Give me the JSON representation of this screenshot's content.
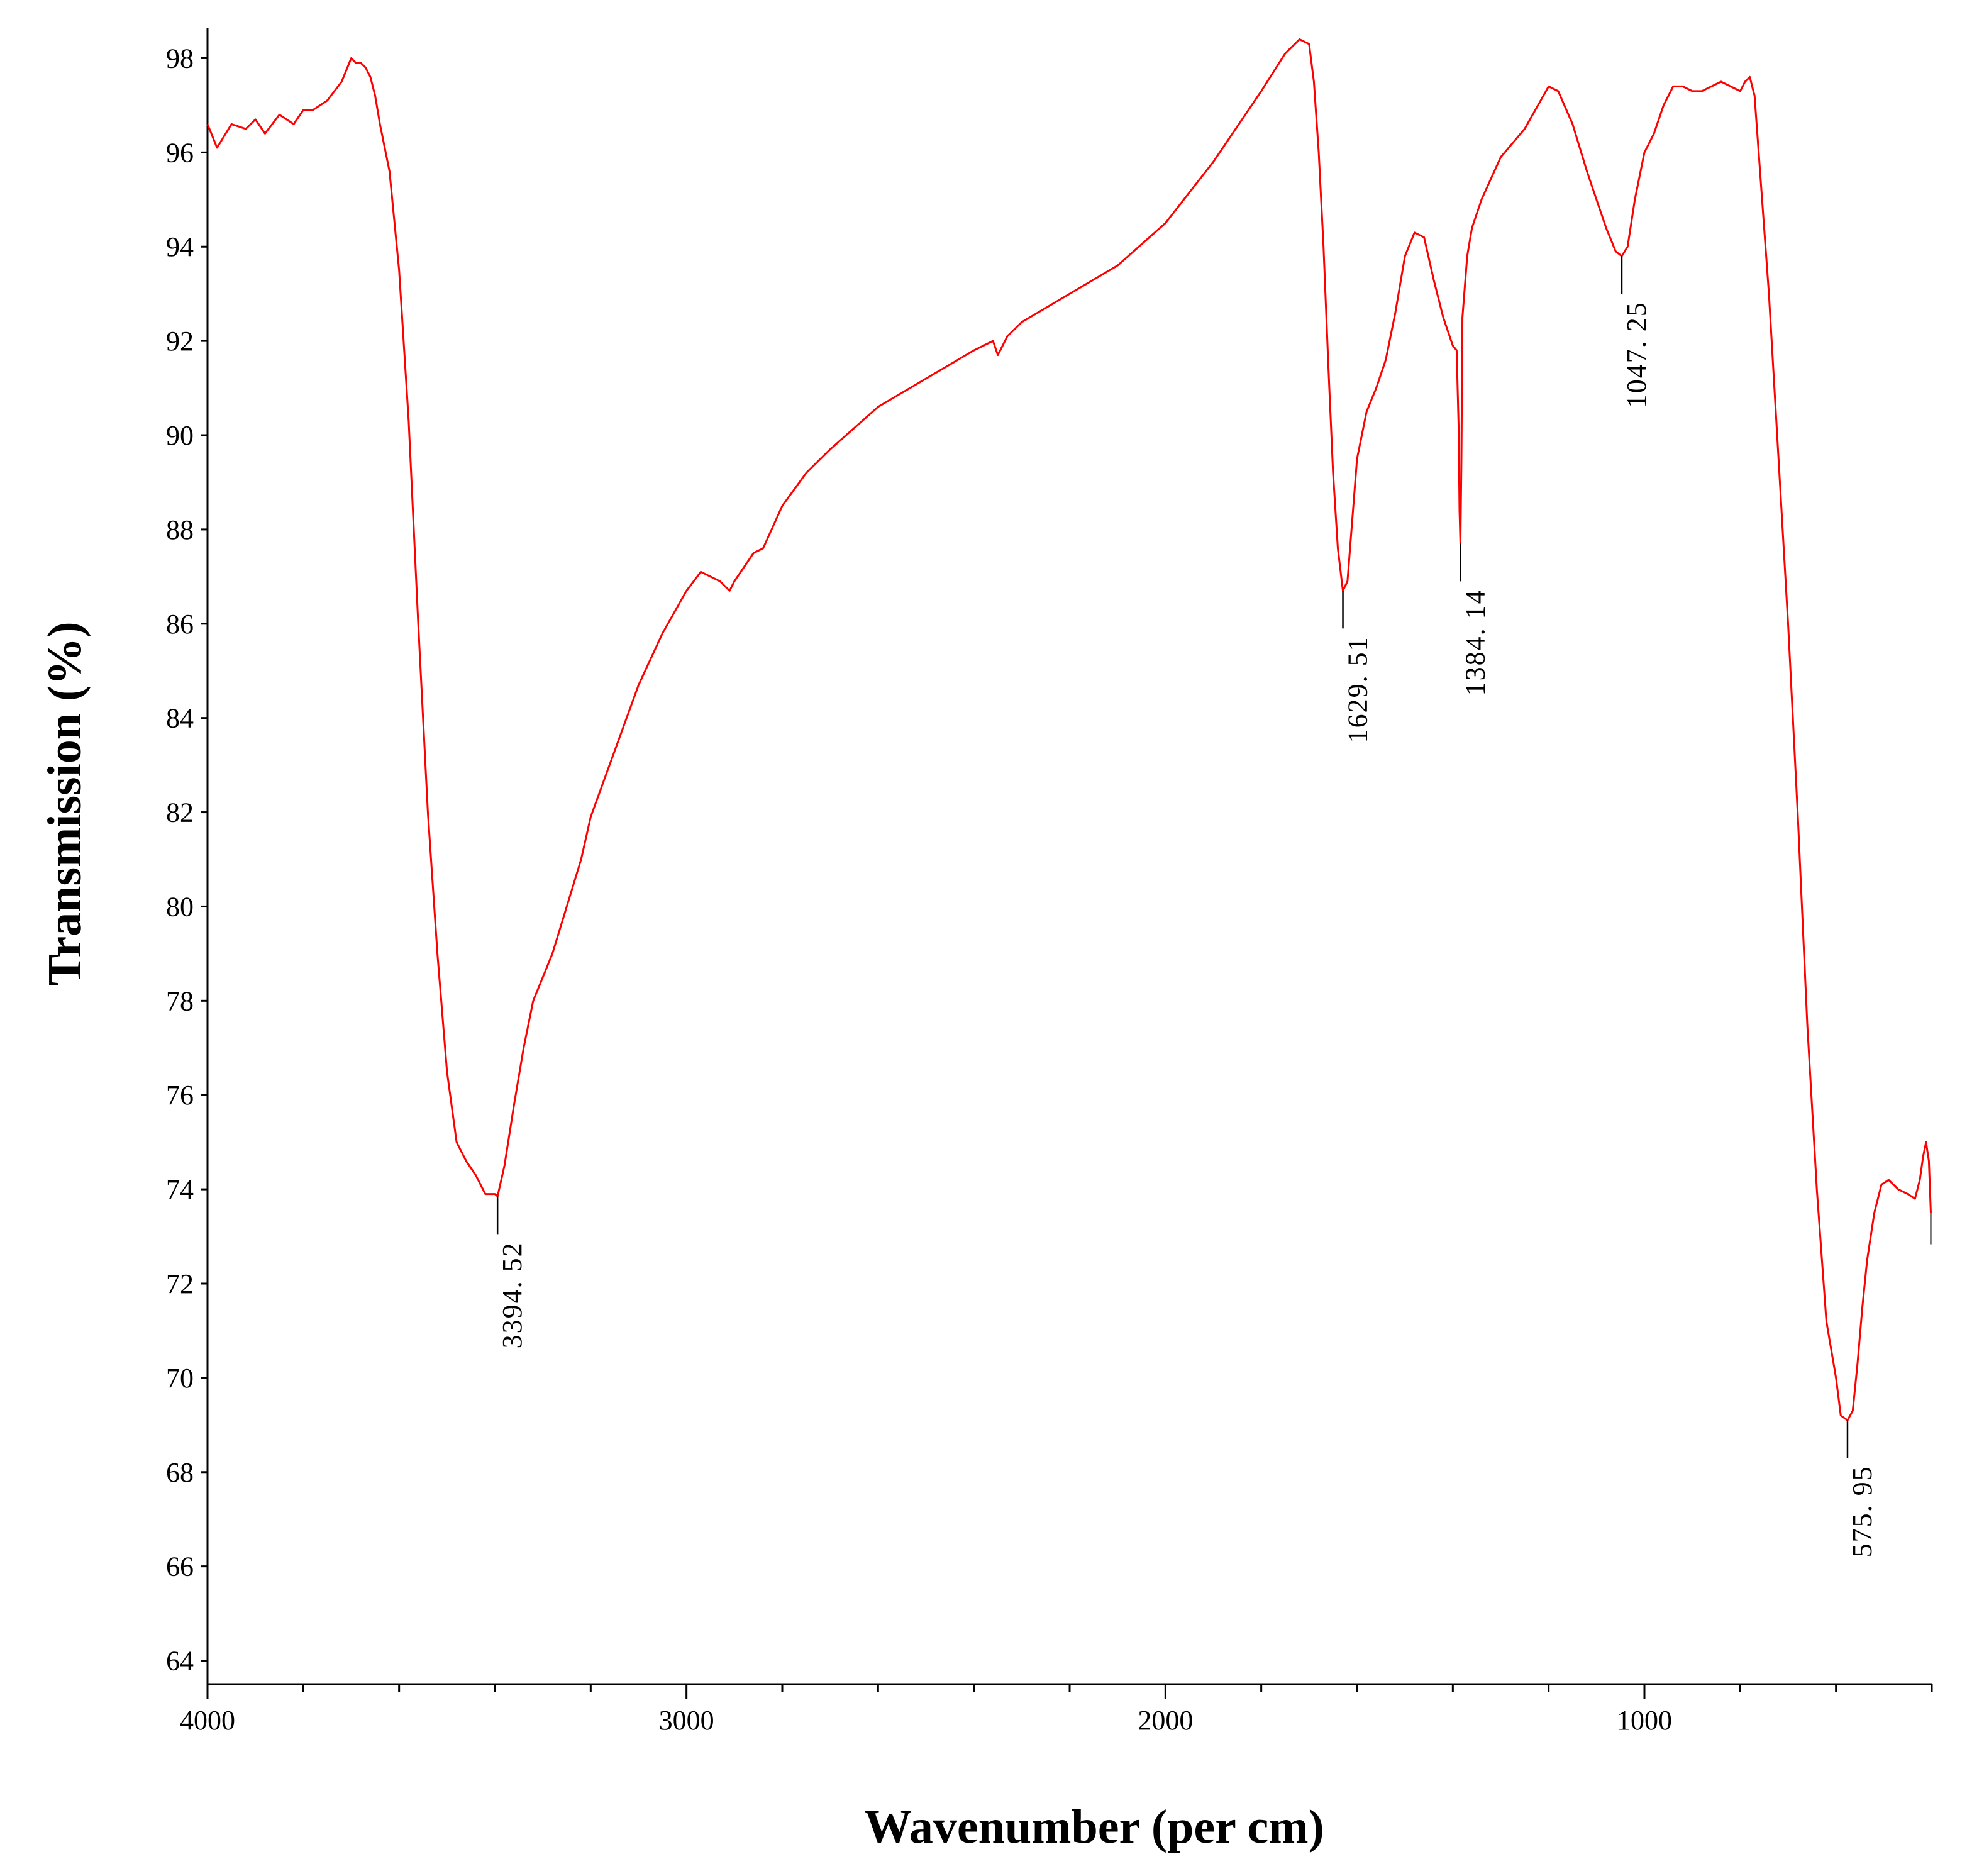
{
  "chart_data": {
    "type": "line",
    "xlabel": "Wavenumber (per cm)",
    "ylabel": "Transmission (%)",
    "xlim": [
      4000,
      400
    ],
    "ylim": [
      63.5,
      98.5
    ],
    "x_ticks": [
      4000,
      3000,
      2000,
      1000
    ],
    "x_tick_labels": [
      "4000",
      "3000",
      "2000",
      "1000"
    ],
    "y_ticks": [
      64,
      66,
      68,
      70,
      72,
      74,
      76,
      78,
      80,
      82,
      84,
      86,
      88,
      90,
      92,
      94,
      96,
      98
    ],
    "y_tick_labels": [
      "64",
      "66",
      "68",
      "70",
      "72",
      "74",
      "76",
      "78",
      "80",
      "82",
      "84",
      "86",
      "88",
      "90",
      "92",
      "94",
      "96",
      "98"
    ],
    "grid": false,
    "line_color": "#ff0000",
    "series": [
      {
        "x": [
          4000,
          3980,
          3950,
          3920,
          3900,
          3880,
          3850,
          3820,
          3800,
          3780,
          3750,
          3720,
          3700,
          3690,
          3680,
          3670,
          3660,
          3650,
          3640,
          3620,
          3600,
          3580,
          3560,
          3540,
          3520,
          3500,
          3480,
          3460,
          3440,
          3420,
          3400,
          3394.52,
          3380,
          3360,
          3340,
          3320,
          3300,
          3280,
          3250,
          3220,
          3200,
          3150,
          3100,
          3050,
          3000,
          2970,
          2950,
          2930,
          2910,
          2900,
          2880,
          2860,
          2840,
          2800,
          2750,
          2700,
          2600,
          2500,
          2400,
          2360,
          2350,
          2340,
          2330,
          2300,
          2200,
          2100,
          2000,
          1900,
          1800,
          1750,
          1720,
          1700,
          1690,
          1680,
          1670,
          1660,
          1650,
          1640,
          1629.51,
          1620,
          1610,
          1600,
          1580,
          1560,
          1540,
          1520,
          1500,
          1480,
          1460,
          1440,
          1420,
          1400,
          1392,
          1388,
          1386,
          1384.14,
          1382,
          1380,
          1370,
          1360,
          1340,
          1300,
          1250,
          1200,
          1180,
          1150,
          1120,
          1100,
          1080,
          1060,
          1047.25,
          1035,
          1020,
          1000,
          980,
          960,
          940,
          920,
          900,
          880,
          860,
          840,
          820,
          800,
          790,
          780,
          770,
          760,
          740,
          720,
          700,
          680,
          660,
          640,
          620,
          600,
          590,
          575.95,
          565,
          555,
          545,
          535,
          520,
          505,
          490,
          470,
          450,
          435,
          425,
          418,
          412,
          406,
          402
        ],
        "y": [
          96.6,
          96.1,
          96.6,
          96.5,
          96.7,
          96.4,
          96.8,
          96.6,
          96.9,
          96.9,
          97.1,
          97.5,
          98.0,
          97.9,
          97.9,
          97.8,
          97.6,
          97.2,
          96.6,
          95.6,
          93.5,
          90.3,
          86.0,
          82.0,
          79.0,
          76.5,
          75.0,
          74.6,
          74.3,
          73.9,
          73.9,
          73.85,
          74.5,
          75.8,
          77.0,
          78.0,
          78.5,
          79.0,
          80.0,
          81.0,
          81.9,
          83.3,
          84.7,
          85.8,
          86.7,
          87.1,
          87.0,
          86.9,
          86.7,
          86.9,
          87.2,
          87.5,
          87.6,
          88.5,
          89.2,
          89.7,
          90.6,
          91.2,
          91.8,
          92.0,
          91.7,
          91.9,
          92.1,
          92.4,
          93.0,
          93.6,
          94.5,
          95.8,
          97.3,
          98.1,
          98.4,
          98.3,
          97.5,
          96.0,
          94.0,
          91.5,
          89.2,
          87.6,
          86.7,
          86.9,
          88.2,
          89.5,
          90.5,
          91.0,
          91.6,
          92.6,
          93.8,
          94.3,
          94.2,
          93.3,
          92.5,
          91.9,
          91.8,
          90.2,
          88.4,
          87.7,
          89.5,
          92.5,
          93.8,
          94.4,
          95.0,
          95.9,
          96.5,
          97.4,
          97.3,
          96.6,
          95.6,
          95.0,
          94.4,
          93.9,
          93.8,
          94.0,
          95.0,
          96.0,
          96.4,
          97.0,
          97.4,
          97.4,
          97.3,
          97.3,
          97.4,
          97.5,
          97.4,
          97.3,
          97.5,
          97.6,
          97.2,
          95.8,
          93.0,
          89.5,
          86.0,
          82.0,
          77.5,
          74.0,
          71.2,
          70.0,
          69.2,
          69.1,
          69.3,
          70.3,
          71.5,
          72.5,
          73.5,
          74.1,
          74.2,
          74.0,
          73.9,
          73.8,
          74.2,
          74.7,
          75.0,
          74.6,
          73.5
        ]
      }
    ],
    "annotations": [
      {
        "x": 3394.52,
        "y": 73.85,
        "label": "3394. 52"
      },
      {
        "x": 1629.51,
        "y": 86.7,
        "label": "1629. 51"
      },
      {
        "x": 1384.14,
        "y": 87.7,
        "label": "1384. 14"
      },
      {
        "x": 1047.25,
        "y": 93.8,
        "label": "1047. 25"
      },
      {
        "x": 575.95,
        "y": 69.1,
        "label": "575. 95"
      }
    ]
  }
}
